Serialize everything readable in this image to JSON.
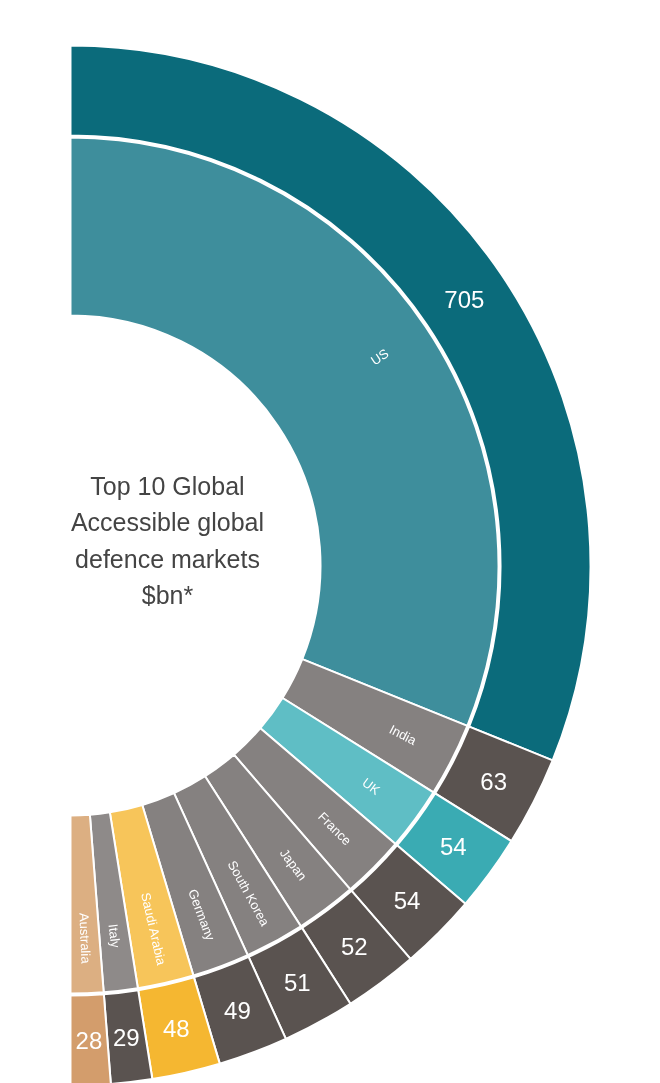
{
  "chart_data": {
    "type": "donut",
    "title": "Top 10 Global\nAccessible global\ndefence markets\n$bn*",
    "categories": [
      "US",
      "India",
      "UK",
      "France",
      "Japan",
      "South Korea",
      "Germany",
      "Saudi Arabia",
      "Italy",
      "Australia"
    ],
    "series": [
      {
        "values": [
          705,
          63,
          54,
          54,
          52,
          51,
          49,
          48,
          29,
          28
        ],
        "value_labels": [
          "705",
          "63",
          "54",
          "54",
          "52",
          "51",
          "49",
          "48",
          "29",
          "28"
        ],
        "colors": [
          "#0b6b7b",
          "#5a5350",
          "#3aabb3",
          "#5a5350",
          "#5a5350",
          "#5a5350",
          "#5a5350",
          "#f5b731",
          "#5a5350",
          "#d39d6c"
        ]
      },
      {
        "values": [
          62.22,
          5.56,
          4.77,
          4.77,
          4.59,
          4.5,
          4.32,
          4.24,
          2.56,
          2.47
        ],
        "colors": [
          "#3e8e9c",
          "#858180",
          "#5fbec5",
          "#858180",
          "#858180",
          "#858180",
          "#858180",
          "#f7c55a",
          "#8e8a89",
          "#dcaf82"
        ]
      }
    ]
  }
}
